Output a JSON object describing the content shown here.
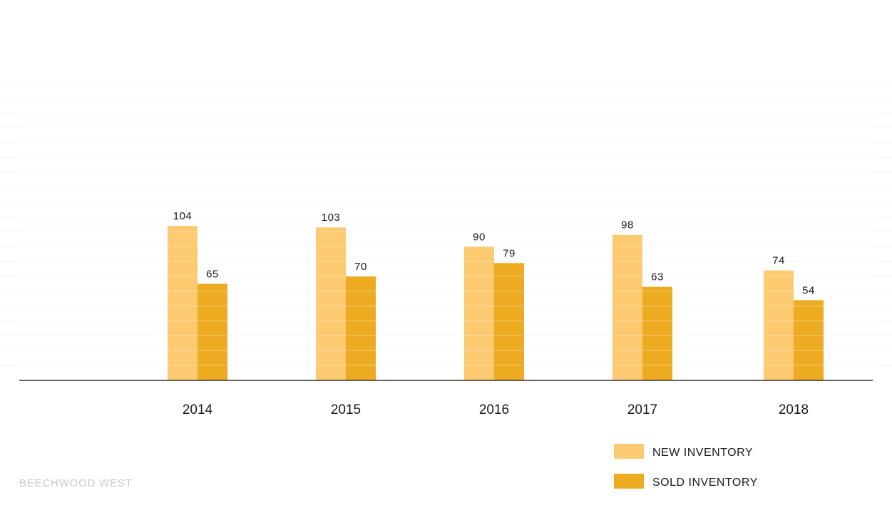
{
  "chart_data": {
    "type": "bar",
    "categories": [
      "2014",
      "2015",
      "2016",
      "2017",
      "2018"
    ],
    "series": [
      {
        "name": "NEW INVENTORY",
        "values": [
          104,
          103,
          90,
          98,
          74
        ],
        "color": "#FDCA72"
      },
      {
        "name": "SOLD INVENTORY",
        "values": [
          65,
          70,
          79,
          63,
          54
        ],
        "color": "#EDAB22"
      }
    ],
    "ylim": [
      0,
      200
    ],
    "grid": true,
    "legend_position": "bottom-right"
  },
  "footer": {
    "brand": "BEECHWOOD WEST"
  }
}
